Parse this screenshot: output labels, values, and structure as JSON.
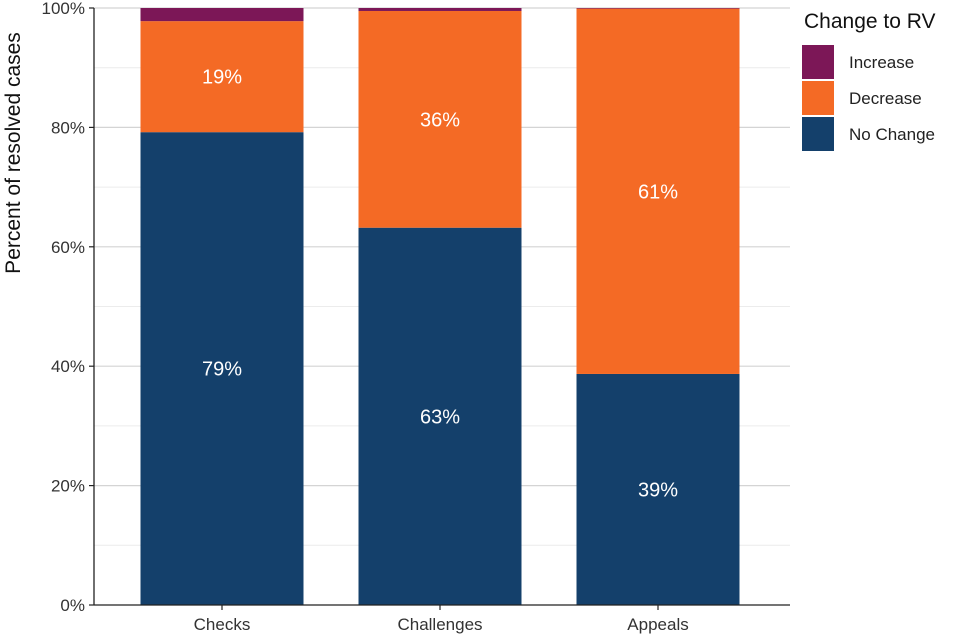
{
  "chart_data": {
    "type": "bar",
    "stacked": true,
    "categories": [
      "Checks",
      "Challenges",
      "Appeals"
    ],
    "series": [
      {
        "name": "No Change",
        "color": "#14406b",
        "values": [
          79.2,
          63.2,
          38.7
        ],
        "labels": [
          "79%",
          "63%",
          "39%"
        ]
      },
      {
        "name": "Decrease",
        "color": "#f46a25",
        "values": [
          18.6,
          36.3,
          61.2
        ],
        "labels": [
          "19%",
          "36%",
          "61%"
        ]
      },
      {
        "name": "Increase",
        "color": "#7c1757",
        "values": [
          2.2,
          0.5,
          0.1
        ],
        "labels": [
          "",
          "",
          ""
        ]
      }
    ],
    "ylabel": "Percent of resolved cases",
    "xlabel": "",
    "ylim": [
      0,
      100
    ],
    "yticks": [
      0,
      20,
      40,
      60,
      80,
      100
    ],
    "ytick_labels": [
      "0%",
      "20%",
      "40%",
      "60%",
      "80%",
      "100%"
    ],
    "grid": true,
    "legend": {
      "title": "Change to RV",
      "position": "right",
      "order": [
        "Increase",
        "Decrease",
        "No Change"
      ]
    }
  }
}
